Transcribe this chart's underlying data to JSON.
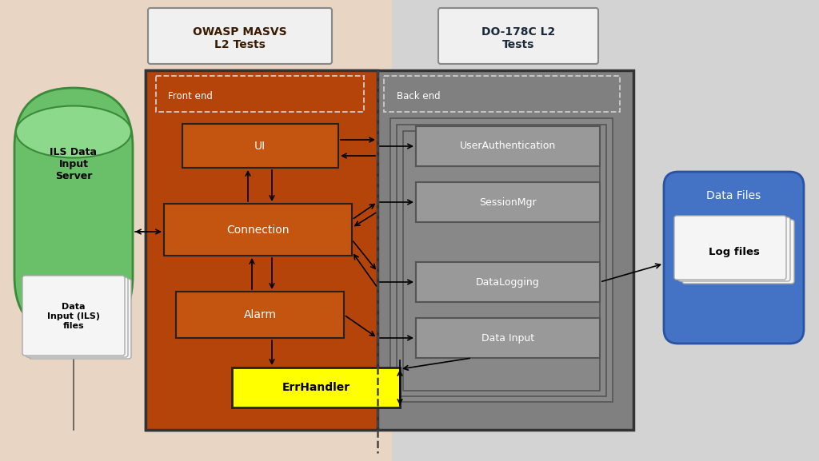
{
  "bg_color_left": "#e8d5c4",
  "bg_color_right": "#d3d3d3",
  "owasp_label": "OWASP MASVS\nL2 Tests",
  "do178c_label": "DO-178C L2\nTests",
  "frontend_color": "#b5440a",
  "backend_color": "#808080",
  "box_edge": "#333333",
  "ils_color": "#6abf69",
  "ils_color_top": "#8cd98c",
  "ils_color_edge": "#3a8a3a",
  "ils_label": "ILS Data\nInput\nServer",
  "ils_files_label": "Data\nInput (ILS)\nfiles",
  "data_files_color": "#4472c4",
  "data_files_label": "Data Files",
  "log_files_label": "Log files",
  "errhandler_color": "#ffff00",
  "white_box": "#f0f0f0",
  "gray_box": "#999999"
}
